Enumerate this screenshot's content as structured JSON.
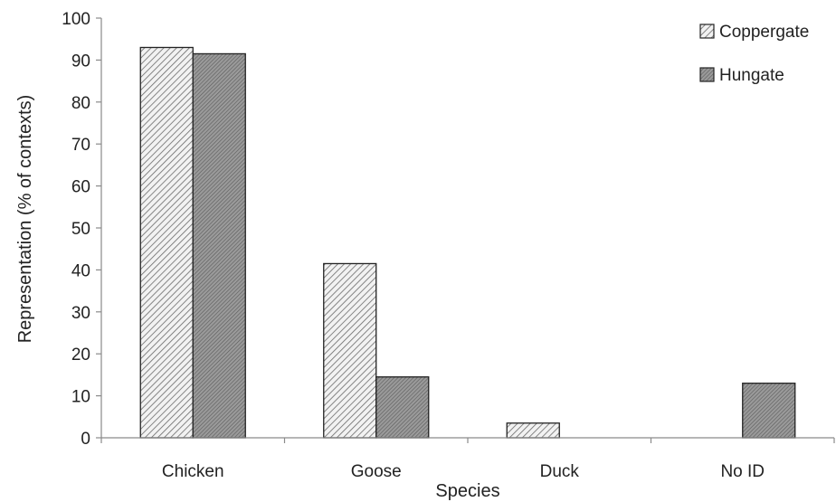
{
  "chart_data": {
    "type": "bar",
    "title": "",
    "xlabel": "Species",
    "ylabel": "Representation (% of contexts)",
    "categories": [
      "Chicken",
      "Goose",
      "Duck",
      "No ID"
    ],
    "series": [
      {
        "name": "Coppergate",
        "values": [
          93,
          41.5,
          3.5,
          0
        ],
        "color": "#d9d9d9",
        "pattern": "diagonal-hatch-light"
      },
      {
        "name": "Hungate",
        "values": [
          91.5,
          14.5,
          0,
          13
        ],
        "color": "#8c8c8c",
        "pattern": "fine-dots-dark"
      }
    ],
    "ylim": [
      0,
      100
    ],
    "yticks": [
      0,
      10,
      20,
      30,
      40,
      50,
      60,
      70,
      80,
      90,
      100
    ],
    "grid": false,
    "legend_position": "top-right"
  }
}
